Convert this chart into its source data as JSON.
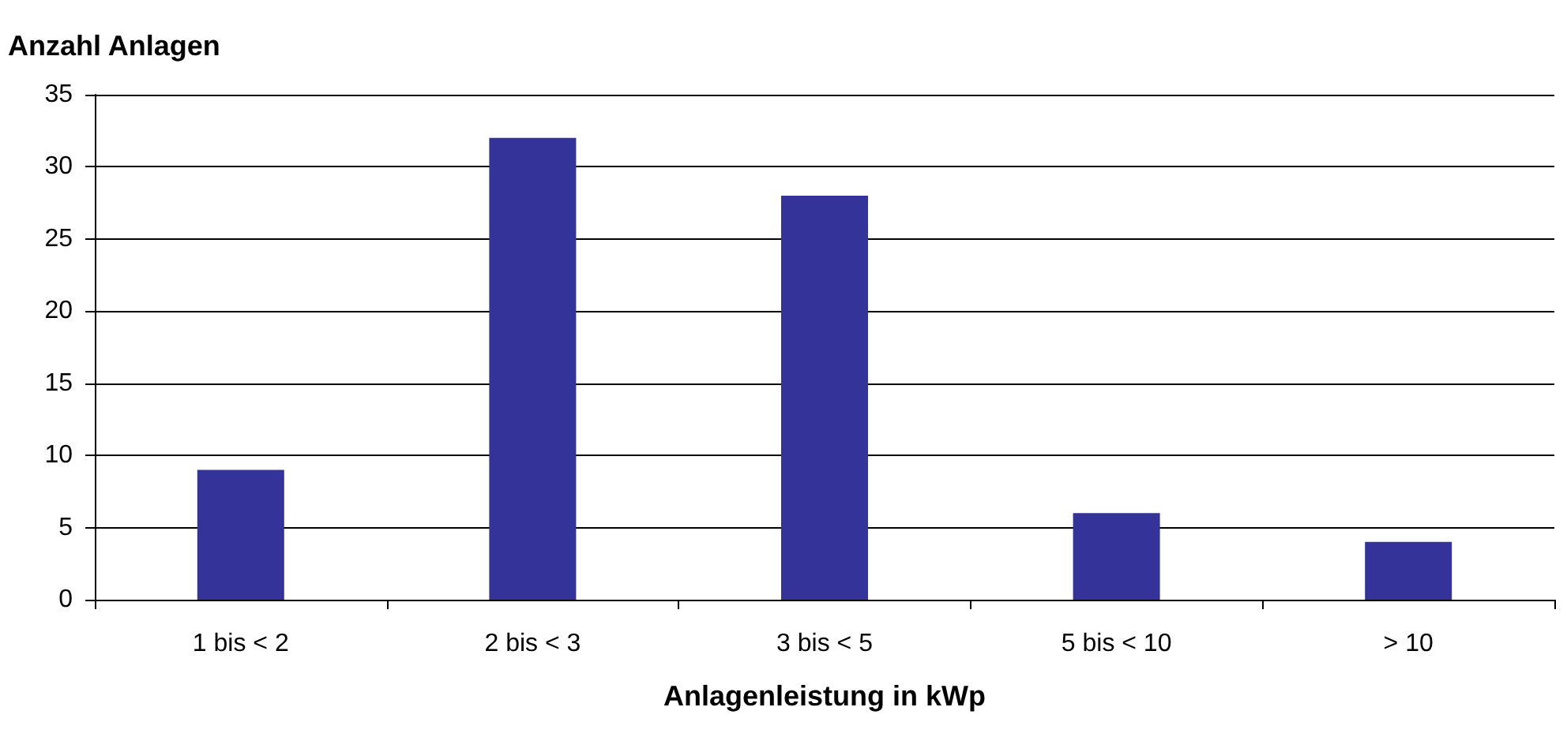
{
  "chart_data": {
    "type": "bar",
    "ylabel": "Anzahl Anlagen",
    "xlabel": "Anlagenleistung in kWp",
    "categories": [
      "1 bis < 2",
      "2 bis < 3",
      "3 bis < 5",
      "5 bis < 10",
      "> 10"
    ],
    "values": [
      9,
      32,
      28,
      6,
      4
    ],
    "color": "#333399",
    "ylim": [
      0,
      35
    ],
    "yticks": [
      0,
      5,
      10,
      15,
      20,
      25,
      30,
      35
    ],
    "grid": "y"
  }
}
